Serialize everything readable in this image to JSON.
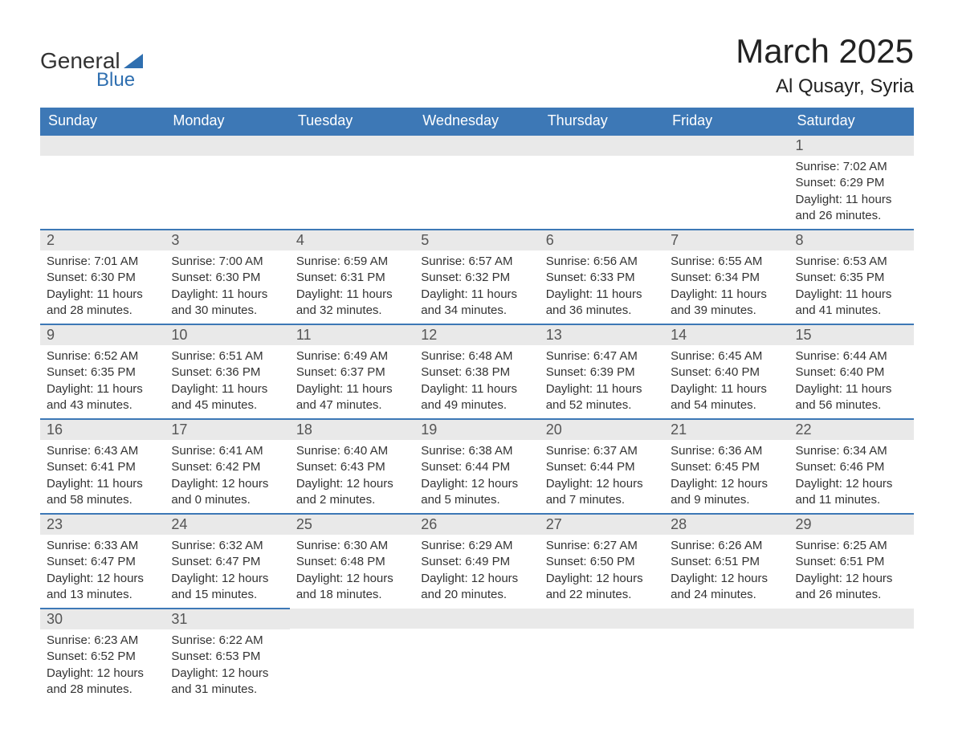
{
  "logo": {
    "text1": "General",
    "text2": "Blue"
  },
  "title": "March 2025",
  "location": "Al Qusayr, Syria",
  "colors": {
    "header_bg": "#3d78b6",
    "header_text": "#ffffff",
    "daynum_bg": "#e9e9e9",
    "border": "#3d78b6",
    "body_text": "#333333",
    "logo_accent": "#2f6fb0"
  },
  "day_headers": [
    "Sunday",
    "Monday",
    "Tuesday",
    "Wednesday",
    "Thursday",
    "Friday",
    "Saturday"
  ],
  "weeks": [
    [
      null,
      null,
      null,
      null,
      null,
      null,
      {
        "n": "1",
        "sr": "7:02 AM",
        "ss": "6:29 PM",
        "dl": "11 hours and 26 minutes."
      }
    ],
    [
      {
        "n": "2",
        "sr": "7:01 AM",
        "ss": "6:30 PM",
        "dl": "11 hours and 28 minutes."
      },
      {
        "n": "3",
        "sr": "7:00 AM",
        "ss": "6:30 PM",
        "dl": "11 hours and 30 minutes."
      },
      {
        "n": "4",
        "sr": "6:59 AM",
        "ss": "6:31 PM",
        "dl": "11 hours and 32 minutes."
      },
      {
        "n": "5",
        "sr": "6:57 AM",
        "ss": "6:32 PM",
        "dl": "11 hours and 34 minutes."
      },
      {
        "n": "6",
        "sr": "6:56 AM",
        "ss": "6:33 PM",
        "dl": "11 hours and 36 minutes."
      },
      {
        "n": "7",
        "sr": "6:55 AM",
        "ss": "6:34 PM",
        "dl": "11 hours and 39 minutes."
      },
      {
        "n": "8",
        "sr": "6:53 AM",
        "ss": "6:35 PM",
        "dl": "11 hours and 41 minutes."
      }
    ],
    [
      {
        "n": "9",
        "sr": "6:52 AM",
        "ss": "6:35 PM",
        "dl": "11 hours and 43 minutes."
      },
      {
        "n": "10",
        "sr": "6:51 AM",
        "ss": "6:36 PM",
        "dl": "11 hours and 45 minutes."
      },
      {
        "n": "11",
        "sr": "6:49 AM",
        "ss": "6:37 PM",
        "dl": "11 hours and 47 minutes."
      },
      {
        "n": "12",
        "sr": "6:48 AM",
        "ss": "6:38 PM",
        "dl": "11 hours and 49 minutes."
      },
      {
        "n": "13",
        "sr": "6:47 AM",
        "ss": "6:39 PM",
        "dl": "11 hours and 52 minutes."
      },
      {
        "n": "14",
        "sr": "6:45 AM",
        "ss": "6:40 PM",
        "dl": "11 hours and 54 minutes."
      },
      {
        "n": "15",
        "sr": "6:44 AM",
        "ss": "6:40 PM",
        "dl": "11 hours and 56 minutes."
      }
    ],
    [
      {
        "n": "16",
        "sr": "6:43 AM",
        "ss": "6:41 PM",
        "dl": "11 hours and 58 minutes."
      },
      {
        "n": "17",
        "sr": "6:41 AM",
        "ss": "6:42 PM",
        "dl": "12 hours and 0 minutes."
      },
      {
        "n": "18",
        "sr": "6:40 AM",
        "ss": "6:43 PM",
        "dl": "12 hours and 2 minutes."
      },
      {
        "n": "19",
        "sr": "6:38 AM",
        "ss": "6:44 PM",
        "dl": "12 hours and 5 minutes."
      },
      {
        "n": "20",
        "sr": "6:37 AM",
        "ss": "6:44 PM",
        "dl": "12 hours and 7 minutes."
      },
      {
        "n": "21",
        "sr": "6:36 AM",
        "ss": "6:45 PM",
        "dl": "12 hours and 9 minutes."
      },
      {
        "n": "22",
        "sr": "6:34 AM",
        "ss": "6:46 PM",
        "dl": "12 hours and 11 minutes."
      }
    ],
    [
      {
        "n": "23",
        "sr": "6:33 AM",
        "ss": "6:47 PM",
        "dl": "12 hours and 13 minutes."
      },
      {
        "n": "24",
        "sr": "6:32 AM",
        "ss": "6:47 PM",
        "dl": "12 hours and 15 minutes."
      },
      {
        "n": "25",
        "sr": "6:30 AM",
        "ss": "6:48 PM",
        "dl": "12 hours and 18 minutes."
      },
      {
        "n": "26",
        "sr": "6:29 AM",
        "ss": "6:49 PM",
        "dl": "12 hours and 20 minutes."
      },
      {
        "n": "27",
        "sr": "6:27 AM",
        "ss": "6:50 PM",
        "dl": "12 hours and 22 minutes."
      },
      {
        "n": "28",
        "sr": "6:26 AM",
        "ss": "6:51 PM",
        "dl": "12 hours and 24 minutes."
      },
      {
        "n": "29",
        "sr": "6:25 AM",
        "ss": "6:51 PM",
        "dl": "12 hours and 26 minutes."
      }
    ],
    [
      {
        "n": "30",
        "sr": "6:23 AM",
        "ss": "6:52 PM",
        "dl": "12 hours and 28 minutes."
      },
      {
        "n": "31",
        "sr": "6:22 AM",
        "ss": "6:53 PM",
        "dl": "12 hours and 31 minutes."
      },
      null,
      null,
      null,
      null,
      null
    ]
  ],
  "labels": {
    "sunrise": "Sunrise: ",
    "sunset": "Sunset: ",
    "daylight": "Daylight: "
  }
}
